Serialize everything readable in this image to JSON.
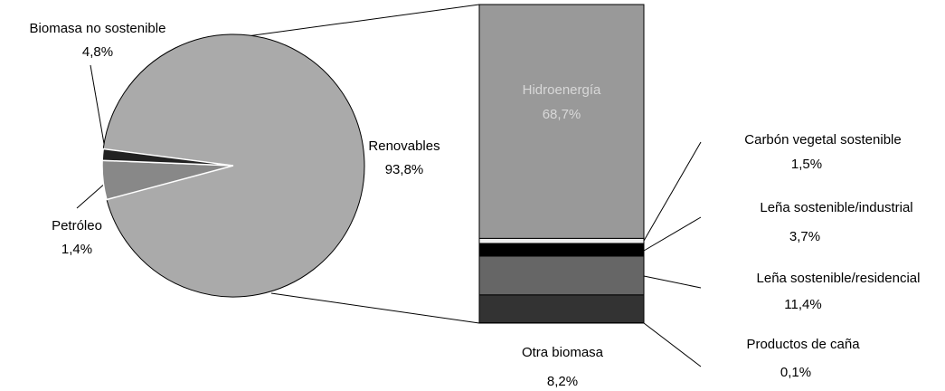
{
  "chart_data": [
    {
      "type": "pie",
      "categories": [
        "Renovables",
        "Biomasa no sostenible",
        "Petróleo"
      ],
      "values": [
        93.8,
        4.8,
        1.4
      ],
      "value_labels": [
        "93,8%",
        "4,8%",
        "1,4%"
      ],
      "colors": [
        "#aaaaaa",
        "#888888",
        "#222222"
      ]
    },
    {
      "type": "bar",
      "categories": [
        "Productos de caña",
        "Otra biomasa",
        "Leña sostenible/residencial",
        "Leña sostenible/industrial",
        "Carbón vegetal sostenible",
        "Hidroenergía"
      ],
      "values": [
        0.1,
        8.2,
        11.4,
        3.7,
        1.5,
        68.7
      ],
      "value_labels": [
        "0,1%",
        "8,2%",
        "11,4%",
        "3,7%",
        "1,5%",
        "68,7%"
      ],
      "colors": [
        "#111111",
        "#333333",
        "#666666",
        "#000000",
        "#eeeeee",
        "#999999"
      ]
    }
  ]
}
